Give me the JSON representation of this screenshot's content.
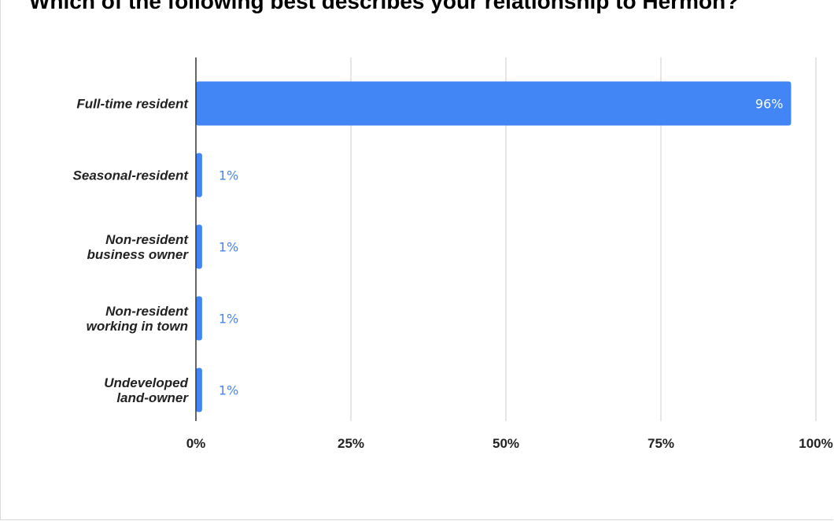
{
  "chart_data": {
    "type": "bar",
    "orientation": "horizontal",
    "title": "Which of the following best describes your relationship to Hermon?",
    "categories": [
      [
        "Full-time resident"
      ],
      [
        "Seasonal-resident"
      ],
      [
        "Non-resident",
        "business owner"
      ],
      [
        "Non-resident",
        "working in town"
      ],
      [
        "Undeveloped",
        "land-owner"
      ]
    ],
    "values": [
      96,
      1,
      1,
      1,
      1
    ],
    "data_labels": [
      "96%",
      "1%",
      "1%",
      "1%",
      "1%"
    ],
    "xlim": [
      0,
      100
    ],
    "x_ticks": [
      0,
      25,
      50,
      75,
      100
    ],
    "x_tick_labels": [
      "0%",
      "25%",
      "50%",
      "75%",
      "100%"
    ],
    "grid": true,
    "legend": "none",
    "colors": {
      "bar": "#4285f4",
      "label_inside": "#ffffff",
      "label_outside": "#4285f4",
      "grid": "#cccccc",
      "axis": "#333333"
    }
  }
}
